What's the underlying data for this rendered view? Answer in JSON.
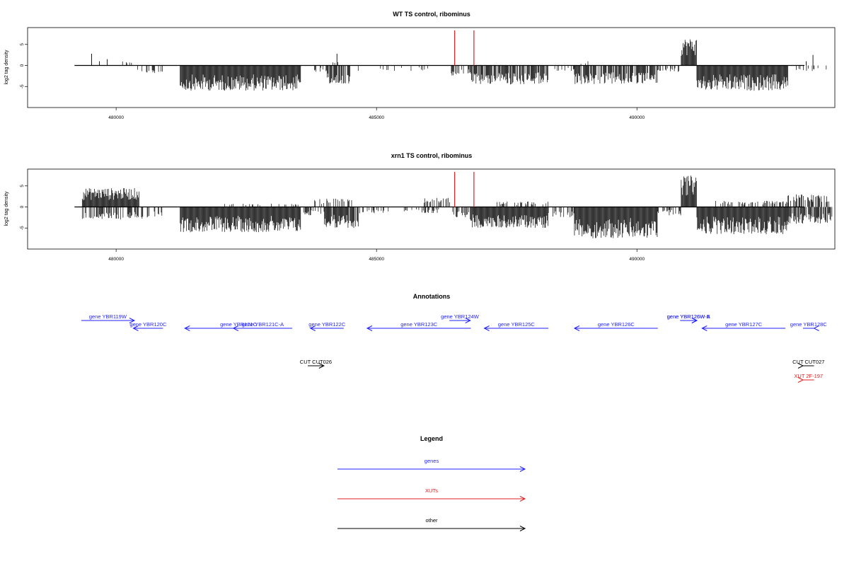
{
  "chart_data": [
    {
      "type": "bar",
      "title": "WT TS control, ribominus",
      "xlabel": "",
      "ylabel": "log2 tag density",
      "xlim": [
        478300,
        493800
      ],
      "ylim": [
        -10,
        9
      ],
      "xticks": [
        480000,
        485000,
        490000
      ],
      "xtick_labels": [
        "480000",
        "485000",
        "490000"
      ],
      "yticks": [
        5,
        0,
        -5
      ],
      "ytick_labels": [
        "5",
        "0",
        "-5"
      ],
      "baseline_range": [
        479200,
        494200
      ],
      "markers": [
        486500,
        486870
      ],
      "marker_color": "#e02020",
      "segments": [
        {
          "start": 479530,
          "end": 479540,
          "kind": "pos",
          "amp": 2.8,
          "density": 1
        },
        {
          "start": 479680,
          "end": 479690,
          "kind": "pos",
          "amp": 1.0,
          "density": 1
        },
        {
          "start": 479830,
          "end": 479840,
          "kind": "pos",
          "amp": 1.5,
          "density": 1
        },
        {
          "start": 480050,
          "end": 480300,
          "kind": "pos",
          "amp": 1.0,
          "density": 0.3
        },
        {
          "start": 480350,
          "end": 480900,
          "kind": "neg",
          "amp": 2.0,
          "density": 0.3
        },
        {
          "start": 481230,
          "end": 483550,
          "kind": "neg",
          "amp": 6.0,
          "density": 1
        },
        {
          "start": 483700,
          "end": 484050,
          "kind": "neg",
          "amp": 1.5,
          "density": 0.3
        },
        {
          "start": 484050,
          "end": 484500,
          "kind": "neg",
          "amp": 4.5,
          "density": 0.7
        },
        {
          "start": 484240,
          "end": 484250,
          "kind": "pos",
          "amp": 2.8,
          "density": 1
        },
        {
          "start": 484100,
          "end": 484300,
          "kind": "pos",
          "amp": 1.3,
          "density": 0.4
        },
        {
          "start": 484550,
          "end": 486200,
          "kind": "neg",
          "amp": 1.3,
          "density": 0.12
        },
        {
          "start": 486400,
          "end": 486800,
          "kind": "neg",
          "amp": 2.5,
          "density": 0.2
        },
        {
          "start": 486800,
          "end": 488300,
          "kind": "neg",
          "amp": 4.5,
          "density": 0.8
        },
        {
          "start": 488300,
          "end": 488800,
          "kind": "neg",
          "amp": 1.3,
          "density": 0.2
        },
        {
          "start": 488800,
          "end": 490400,
          "kind": "neg",
          "amp": 4.5,
          "density": 0.8
        },
        {
          "start": 488900,
          "end": 489200,
          "kind": "pos",
          "amp": 1.0,
          "density": 0.2
        },
        {
          "start": 490400,
          "end": 490850,
          "kind": "neg",
          "amp": 1.5,
          "density": 0.3
        },
        {
          "start": 490850,
          "end": 491150,
          "kind": "pos",
          "amp": 6.5,
          "density": 1
        },
        {
          "start": 491150,
          "end": 492900,
          "kind": "neg",
          "amp": 6.0,
          "density": 1
        },
        {
          "start": 492950,
          "end": 493650,
          "kind": "neg",
          "amp": 1.3,
          "density": 0.12
        },
        {
          "start": 493250,
          "end": 493260,
          "kind": "pos",
          "amp": 1.0,
          "density": 1
        },
        {
          "start": 493380,
          "end": 493390,
          "kind": "pos",
          "amp": 2.5,
          "density": 1
        }
      ]
    },
    {
      "type": "bar",
      "title": "xrn1 TS control, ribominus",
      "xlabel": "",
      "ylabel": "log2 tag density",
      "xlim": [
        478300,
        493800
      ],
      "ylim": [
        -10,
        9
      ],
      "xticks": [
        480000,
        485000,
        490000
      ],
      "xtick_labels": [
        "480000",
        "485000",
        "490000"
      ],
      "yticks": [
        5,
        0,
        -5
      ],
      "ytick_labels": [
        "5",
        "0",
        "-5"
      ],
      "baseline_range": [
        479200,
        494200
      ],
      "markers": [
        486500,
        486870
      ],
      "marker_color": "#e02020",
      "segments": [
        {
          "start": 479350,
          "end": 480450,
          "kind": "pos",
          "amp": 4.5,
          "density": 1
        },
        {
          "start": 479350,
          "end": 480900,
          "kind": "neg",
          "amp": 3.0,
          "density": 0.5
        },
        {
          "start": 481230,
          "end": 483550,
          "kind": "neg",
          "amp": 6.0,
          "density": 1
        },
        {
          "start": 482000,
          "end": 483500,
          "kind": "pos",
          "amp": 0.8,
          "density": 0.2
        },
        {
          "start": 483600,
          "end": 484000,
          "kind": "neg",
          "amp": 2.0,
          "density": 0.5
        },
        {
          "start": 483800,
          "end": 484600,
          "kind": "pos",
          "amp": 2.0,
          "density": 0.4
        },
        {
          "start": 484000,
          "end": 484650,
          "kind": "neg",
          "amp": 5.0,
          "density": 0.9
        },
        {
          "start": 484650,
          "end": 486200,
          "kind": "neg",
          "amp": 1.5,
          "density": 0.3
        },
        {
          "start": 485900,
          "end": 486450,
          "kind": "pos",
          "amp": 2.2,
          "density": 0.4
        },
        {
          "start": 486450,
          "end": 486800,
          "kind": "neg",
          "amp": 2.5,
          "density": 0.4
        },
        {
          "start": 486800,
          "end": 488300,
          "kind": "neg",
          "amp": 5.0,
          "density": 1
        },
        {
          "start": 487300,
          "end": 488300,
          "kind": "pos",
          "amp": 1.3,
          "density": 0.3
        },
        {
          "start": 488300,
          "end": 488800,
          "kind": "neg",
          "amp": 2.5,
          "density": 0.4
        },
        {
          "start": 488800,
          "end": 490400,
          "kind": "neg",
          "amp": 7.5,
          "density": 1
        },
        {
          "start": 490400,
          "end": 490850,
          "kind": "neg",
          "amp": 2.0,
          "density": 0.4
        },
        {
          "start": 490850,
          "end": 491150,
          "kind": "pos",
          "amp": 7.5,
          "density": 1
        },
        {
          "start": 491150,
          "end": 492900,
          "kind": "neg",
          "amp": 6.5,
          "density": 1
        },
        {
          "start": 491500,
          "end": 492900,
          "kind": "pos",
          "amp": 1.5,
          "density": 0.3
        },
        {
          "start": 492900,
          "end": 493750,
          "kind": "neg",
          "amp": 4.0,
          "density": 0.8
        },
        {
          "start": 492900,
          "end": 493700,
          "kind": "pos",
          "amp": 3.0,
          "density": 0.6
        }
      ]
    }
  ],
  "annotations": {
    "title": "Annotations",
    "gene_color": "#1f1fff",
    "xut_color": "#e02020",
    "other_color": "#000000",
    "genes": [
      {
        "label": "gene YBR119W",
        "start": 479330,
        "end": 480350,
        "strand": "+",
        "row": 0
      },
      {
        "label": "gene YBR120C",
        "start": 480330,
        "end": 480900,
        "strand": "-",
        "row": 1
      },
      {
        "label": "gene YBR121C",
        "start": 481320,
        "end": 483380,
        "strand": "-",
        "row": 1
      },
      {
        "label": "gene YBR121C-A",
        "start": 482250,
        "end": 483380,
        "strand": "-",
        "row": 1
      },
      {
        "label": "gene YBR122C",
        "start": 483730,
        "end": 484370,
        "strand": "-",
        "row": 1
      },
      {
        "label": "gene YBR123C",
        "start": 484820,
        "end": 486810,
        "strand": "-",
        "row": 1
      },
      {
        "label": "gene YBR124W",
        "start": 486400,
        "end": 486800,
        "strand": "+",
        "row": 0
      },
      {
        "label": "gene YBR125C",
        "start": 487070,
        "end": 488300,
        "strand": "-",
        "row": 1
      },
      {
        "label": "gene YBR126C",
        "start": 488800,
        "end": 490400,
        "strand": "-",
        "row": 1
      },
      {
        "label": "gene YBR126W-A",
        "start": 490830,
        "end": 491150,
        "strand": "+",
        "row": 0
      },
      {
        "label": "gene YBR126W-B",
        "start": 490830,
        "end": 491150,
        "strand": "+",
        "row": 0
      },
      {
        "label": "gene YBR127C",
        "start": 491250,
        "end": 492850,
        "strand": "-",
        "row": 1
      },
      {
        "label": "gene YBR128C",
        "start": 493400,
        "end": 494200,
        "strand": "-",
        "row": 1
      }
    ],
    "others": [
      {
        "label": "CUT CUT026",
        "start": 483680,
        "end": 483990,
        "strand": "+",
        "row": 0
      },
      {
        "label": "CUT CUT027",
        "start": 493400,
        "end": 493990,
        "strand": "+",
        "row": 0
      }
    ],
    "xuts": [
      {
        "label": "XUT 2F-197",
        "start": 493400,
        "end": 494090,
        "strand": "+",
        "row": 0
      }
    ]
  },
  "legend": {
    "title": "Legend",
    "items": [
      {
        "label": "genes",
        "color": "#1f1fff"
      },
      {
        "label": "XUTs",
        "color": "#e02020"
      },
      {
        "label": "other",
        "color": "#000000"
      }
    ]
  }
}
